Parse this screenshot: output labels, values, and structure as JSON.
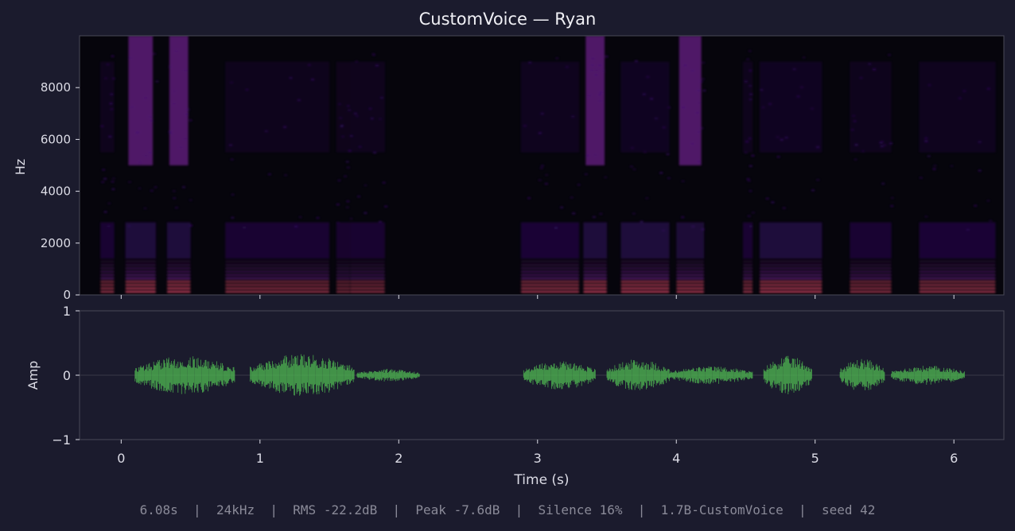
{
  "chart_data": [
    {
      "type": "heatmap",
      "title": "CustomVoice — Ryan",
      "ylabel": "Hz",
      "ylim": [
        0,
        10000
      ],
      "yticks": [
        "0",
        "2000",
        "4000",
        "6000",
        "8000"
      ],
      "xlim": [
        -0.3,
        6.36
      ],
      "colormap": [
        "#000000",
        "#3b0f70",
        "#8c29b2",
        "#de4968",
        "#fcfdbf"
      ],
      "bursts": [
        {
          "t0": -0.15,
          "t1": -0.05,
          "energy": 0.7
        },
        {
          "t0": 0.03,
          "t1": 0.25,
          "energy": 0.85
        },
        {
          "t0": 0.33,
          "t1": 0.5,
          "energy": 0.85
        },
        {
          "t0": 0.75,
          "t1": 1.5,
          "energy": 0.7
        },
        {
          "t0": 1.55,
          "t1": 1.65,
          "energy": 0.6
        },
        {
          "t0": 1.65,
          "t1": 1.9,
          "energy": 0.65
        },
        {
          "t0": 2.88,
          "t1": 3.3,
          "energy": 0.75
        },
        {
          "t0": 3.33,
          "t1": 3.5,
          "energy": 0.85
        },
        {
          "t0": 3.6,
          "t1": 3.95,
          "energy": 0.85
        },
        {
          "t0": 4.0,
          "t1": 4.2,
          "energy": 0.8
        },
        {
          "t0": 4.48,
          "t1": 4.55,
          "energy": 0.7
        },
        {
          "t0": 4.6,
          "t1": 5.05,
          "energy": 0.85
        },
        {
          "t0": 5.25,
          "t1": 5.55,
          "energy": 0.7
        },
        {
          "t0": 5.75,
          "t1": 6.3,
          "energy": 0.75
        }
      ]
    },
    {
      "type": "line",
      "xlabel": "Time (s)",
      "ylabel": "Amp",
      "xlim": [
        -0.3,
        6.36
      ],
      "ylim": [
        -1,
        1
      ],
      "xticks": [
        0,
        1,
        2,
        3,
        4,
        5,
        6
      ],
      "yticks": [
        "−1",
        "0",
        "1"
      ],
      "color": "#4caf50",
      "segments": [
        {
          "t0": 0.1,
          "t1": 0.82,
          "amp": 0.3
        },
        {
          "t0": 0.93,
          "t1": 1.68,
          "amp": 0.33
        },
        {
          "t0": 1.7,
          "t1": 2.15,
          "amp": 0.1
        },
        {
          "t0": 2.9,
          "t1": 3.42,
          "amp": 0.23
        },
        {
          "t0": 3.5,
          "t1": 3.95,
          "amp": 0.25
        },
        {
          "t0": 3.95,
          "t1": 4.55,
          "amp": 0.14
        },
        {
          "t0": 4.63,
          "t1": 4.98,
          "amp": 0.3
        },
        {
          "t0": 5.18,
          "t1": 5.5,
          "amp": 0.26
        },
        {
          "t0": 5.55,
          "t1": 6.08,
          "amp": 0.15
        }
      ]
    }
  ],
  "footer": "6.08s  |  24kHz  |  RMS -22.2dB  |  Peak -7.6dB  |  Silence 16%  |  1.7B-CustomVoice  |  seed 42"
}
